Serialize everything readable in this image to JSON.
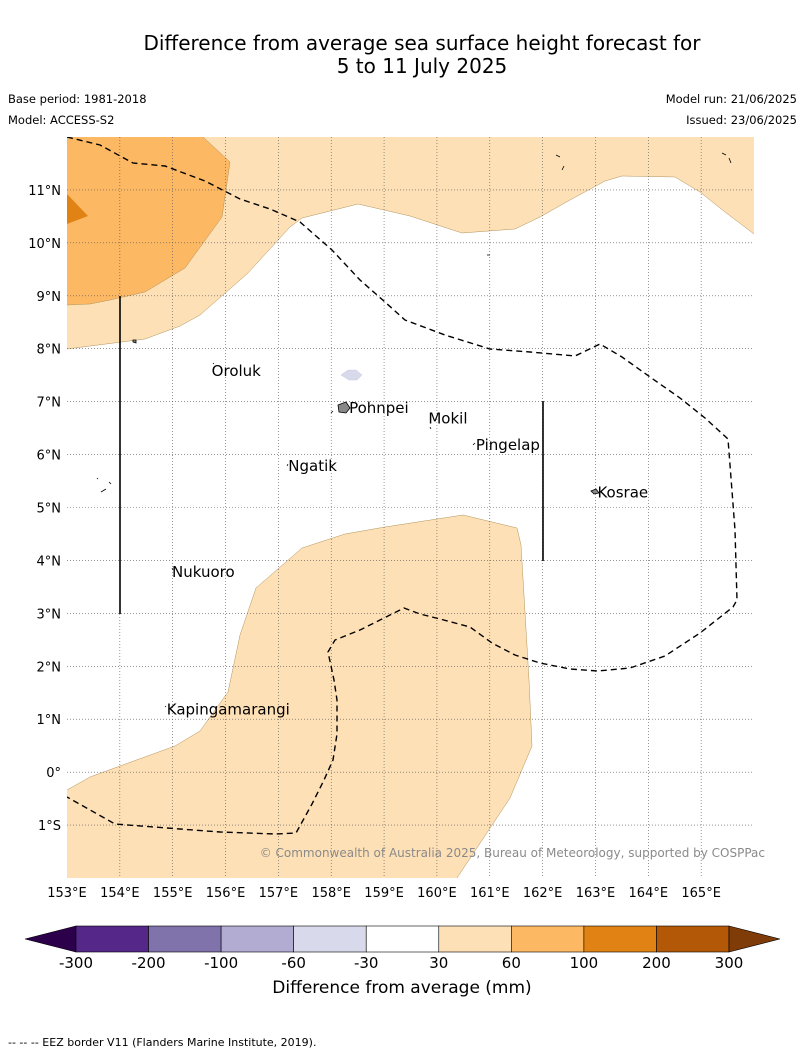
{
  "title": {
    "line1": "Difference from average sea surface height forecast for",
    "line2": "5 to 11 July 2025"
  },
  "meta": {
    "base_period": "Base period: 1981-2018",
    "model": "Model: ACCESS-S2",
    "model_run": "Model run: 21/06/2025",
    "issued": "Issued: 23/06/2025"
  },
  "map": {
    "lon_range": [
      153,
      166
    ],
    "lat_range": [
      -2,
      12
    ],
    "lat_labels": [
      "11°N",
      "10°N",
      "9°N",
      "8°N",
      "7°N",
      "6°N",
      "5°N",
      "4°N",
      "3°N",
      "2°N",
      "1°N",
      "0°",
      "1°S"
    ],
    "lat_values": [
      11,
      10,
      9,
      8,
      7,
      6,
      5,
      4,
      3,
      2,
      1,
      0,
      -1
    ],
    "lon_labels": [
      "153°E",
      "154°E",
      "155°E",
      "156°E",
      "157°E",
      "158°E",
      "159°E",
      "160°E",
      "161°E",
      "162°E",
      "163°E",
      "164°E",
      "165°E"
    ],
    "lon_values": [
      153,
      154,
      155,
      156,
      157,
      158,
      159,
      160,
      161,
      162,
      163,
      164,
      165
    ],
    "places": [
      {
        "name": "Oroluk",
        "lon": 155.7,
        "lat": 7.6
      },
      {
        "name": "Pohnpei",
        "lon": 158.3,
        "lat": 6.9
      },
      {
        "name": "Mokil",
        "lon": 159.8,
        "lat": 6.7
      },
      {
        "name": "Pingelap",
        "lon": 160.7,
        "lat": 6.2
      },
      {
        "name": "Ngatik",
        "lon": 157.15,
        "lat": 5.8
      },
      {
        "name": "Kosrae",
        "lon": 163.0,
        "lat": 5.3
      },
      {
        "name": "Nukuoro",
        "lon": 154.95,
        "lat": 3.8
      },
      {
        "name": "Kapingamarangi",
        "lon": 154.85,
        "lat": 1.2
      }
    ],
    "copyright": "© Commonwealth of Australia 2025, Bureau of Meteorology, supported by COSPPac",
    "land_color": "#888888",
    "ocean_color": "#ffffff"
  },
  "colorbar": {
    "title": "Difference from average (mm)",
    "ticks": [
      "-300",
      "-200",
      "-100",
      "-60",
      "-30",
      "30",
      "60",
      "100",
      "200",
      "300"
    ],
    "colors": [
      "#542788",
      "#8073ac",
      "#b2abd2",
      "#d8daeb",
      "#ffffff",
      "#fee0b6",
      "#fdb863",
      "#e08214",
      "#b35806"
    ],
    "under_color": "#2d004b",
    "over_color": "#7f3b08"
  },
  "footnote": "--  --  -- EEZ border V11 (Flanders Marine Institute, 2019)."
}
